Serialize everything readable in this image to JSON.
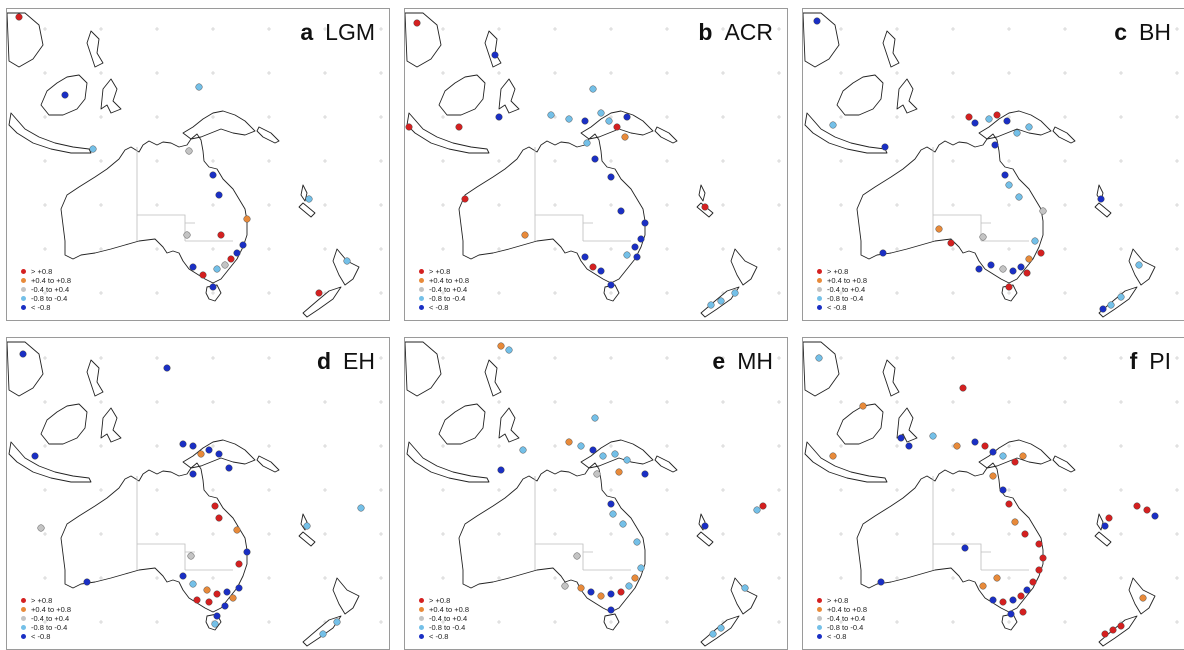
{
  "colors": {
    "gt_plus_0_8": "#d42020",
    "plus_0_4_to_plus_0_8": "#e88a3a",
    "minus_0_4_to_plus_0_4": "#c4c4c4",
    "minus_0_8_to_minus_0_4": "#74c0e8",
    "lt_minus_0_8": "#1a2fc4",
    "coast": "#222222",
    "state_border": "#bdbdbd",
    "grid_cross": "#cfcfcf"
  },
  "legend": [
    {
      "label": "> +0.8",
      "cls": "gt_plus_0_8"
    },
    {
      "label": "+0.4 to +0.8",
      "cls": "plus_0_4_to_plus_0_8"
    },
    {
      "label": "-0.4 to +0.4",
      "cls": "minus_0_4_to_plus_0_4"
    },
    {
      "label": "-0.8 to -0.4",
      "cls": "minus_0_8_to_minus_0_4"
    },
    {
      "label": "< -0.8",
      "cls": "lt_minus_0_8"
    }
  ],
  "panels": [
    {
      "letter": "a",
      "period": "LGM"
    },
    {
      "letter": "b",
      "period": "ACR"
    },
    {
      "letter": "c",
      "period": "BH"
    },
    {
      "letter": "d",
      "period": "EH"
    },
    {
      "letter": "e",
      "period": "MH"
    },
    {
      "letter": "f",
      "period": "PI"
    }
  ]
}
